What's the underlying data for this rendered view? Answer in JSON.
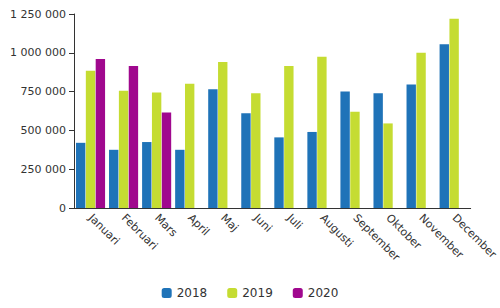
{
  "chart_data": {
    "type": "bar",
    "categories": [
      "Januari",
      "Februari",
      "Mars",
      "April",
      "Maj",
      "Juni",
      "Juli",
      "Augusti",
      "September",
      "Oktober",
      "November",
      "December"
    ],
    "series": [
      {
        "name": "2018",
        "color": "#1f73b8",
        "values": [
          420000,
          375000,
          425000,
          375000,
          765000,
          610000,
          455000,
          490000,
          750000,
          740000,
          795000,
          1055000
        ]
      },
      {
        "name": "2019",
        "color": "#c5dc32",
        "values": [
          885000,
          755000,
          745000,
          800000,
          940000,
          740000,
          915000,
          975000,
          620000,
          545000,
          1000000,
          1220000
        ]
      },
      {
        "name": "2020",
        "color": "#a0088e",
        "values": [
          960000,
          915000,
          615000,
          null,
          null,
          null,
          null,
          null,
          null,
          null,
          null,
          null
        ]
      }
    ],
    "ylim": [
      0,
      1250000
    ],
    "yticks": [
      0,
      {
        "value": 250000,
        "label": "250 000"
      },
      {
        "value": 500000,
        "label": "500 000"
      },
      {
        "value": 750000,
        "label": "750 000"
      },
      {
        "value": 1000000,
        "label": "1 000 000"
      },
      {
        "value": 1250000,
        "label": "1 250 000"
      }
    ],
    "grid": false,
    "legend": "bottom"
  }
}
